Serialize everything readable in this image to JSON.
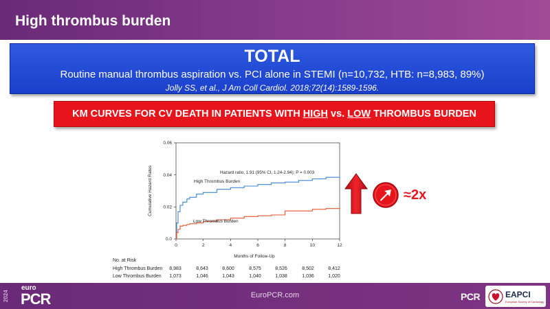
{
  "header": {
    "title": "High thrombus burden"
  },
  "total_box": {
    "heading": "TOTAL",
    "subtitle": "Routine manual thrombus aspiration vs. PCI alone in STEMI (n=10,732, HTB: n=8,983, 89%)",
    "citation": "Jolly SS, et al., J Am Coll Cardiol. 2018;72(14):1589-1596."
  },
  "km_banner": {
    "prefix": "KM CURVES FOR CV DEATH IN PATIENTS WITH ",
    "high": "HIGH",
    "vs": " vs. ",
    "low": "LOW",
    "suffix": " THROMBUS BURDEN"
  },
  "chart_data": {
    "type": "line",
    "xlabel": "Months of Follow-Up",
    "ylabel": "Cumulative Hazard Rates",
    "xlim": [
      0,
      12
    ],
    "ylim": [
      0,
      0.06
    ],
    "x_ticks": [
      "0",
      "2",
      "4",
      "6",
      "8",
      "10",
      "12"
    ],
    "y_ticks": [
      "0.0",
      "0.02",
      "0.04",
      "0.06"
    ],
    "annotation": "Hazard ratio, 1.91 (95% CI, 1.24-2.94); P = 0.003",
    "series": [
      {
        "name": "High Thrombus Burden",
        "color": "#3b86d6",
        "x": [
          0,
          0.05,
          0.15,
          0.3,
          0.5,
          0.8,
          1.0,
          1.5,
          2,
          3,
          4,
          5,
          6,
          7,
          8,
          9,
          10,
          11,
          12
        ],
        "y": [
          0,
          0.01,
          0.017,
          0.021,
          0.023,
          0.025,
          0.026,
          0.028,
          0.029,
          0.031,
          0.032,
          0.033,
          0.034,
          0.035,
          0.0355,
          0.0365,
          0.0375,
          0.0385,
          0.04
        ]
      },
      {
        "name": "Low Thrombus Burden",
        "color": "#e0552f",
        "x": [
          0,
          0.05,
          0.15,
          0.3,
          0.5,
          0.8,
          1.0,
          1.5,
          2,
          3,
          4,
          5,
          6,
          7,
          8,
          9,
          10,
          11,
          12
        ],
        "y": [
          0,
          0.004,
          0.006,
          0.008,
          0.0085,
          0.009,
          0.0095,
          0.01,
          0.011,
          0.012,
          0.013,
          0.014,
          0.0145,
          0.015,
          0.0175,
          0.0175,
          0.0185,
          0.019,
          0.02
        ]
      }
    ],
    "risk_table": {
      "title": "No. at Risk",
      "rows": [
        {
          "label": "High Thrombus Burden",
          "values": [
            "8,983",
            "8,643",
            "8,600",
            "8,575",
            "8,526",
            "8,502",
            "8,412"
          ]
        },
        {
          "label": "Low Thrombus Burden",
          "values": [
            "1,073",
            "1,046",
            "1,043",
            "1,040",
            "1,038",
            "1,036",
            "1,020"
          ]
        }
      ]
    }
  },
  "callout": {
    "text": "≈2x",
    "arrow_icon": "up-arrow-icon",
    "circle_icon": "up-right-arrow-circle-icon",
    "color": "#e8141c"
  },
  "footer": {
    "year": "2024",
    "brand_small": "euro",
    "brand_large": "PCR",
    "url": "EuroPCR.com",
    "logo_pcr": "PCR",
    "logo_eapci": "EAPCI",
    "logo_eapci_sub": "European Society of Cardiology"
  }
}
